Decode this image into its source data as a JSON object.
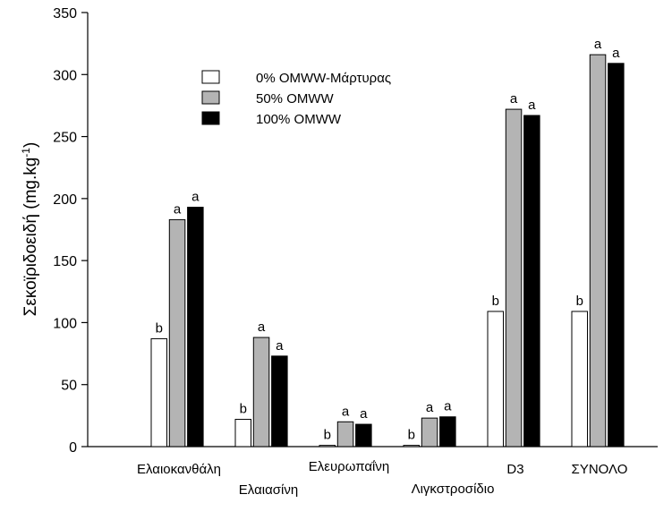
{
  "chart_data": {
    "type": "bar",
    "title": "",
    "ylabel_main": "Σεκοϊριδοειδή (mg.kg",
    "ylabel_sup": "-1",
    "ylabel_close": ")",
    "xlabel": "",
    "ylim": [
      0,
      350
    ],
    "yticks": [
      0,
      50,
      100,
      150,
      200,
      250,
      300,
      350
    ],
    "categories": [
      "Ελαιοκανθάλη",
      "Ελαιασίνη",
      "Ελευρωπαΐνη",
      "Λιγκστροσίδιο",
      "D3",
      "ΣΥΝΟΛΟ"
    ],
    "series": [
      {
        "name": "0% OMWW-Μάρτυρας",
        "color": "#ffffff",
        "values": [
          87,
          22,
          1,
          1,
          109,
          109
        ],
        "sig": [
          "b",
          "b",
          "b",
          "b",
          "b",
          "b"
        ]
      },
      {
        "name": "50% OMWW",
        "color": "#b4b4b4",
        "values": [
          183,
          88,
          20,
          23,
          272,
          316
        ],
        "sig": [
          "a",
          "a",
          "a",
          "a",
          "a",
          "a"
        ]
      },
      {
        "name": "100% OMWW",
        "color": "#000000",
        "values": [
          193,
          73,
          18,
          24,
          267,
          309
        ],
        "sig": [
          "a",
          "a",
          "a",
          "a",
          "a",
          "a"
        ]
      }
    ],
    "legend_position": "top-center",
    "grid": false
  }
}
